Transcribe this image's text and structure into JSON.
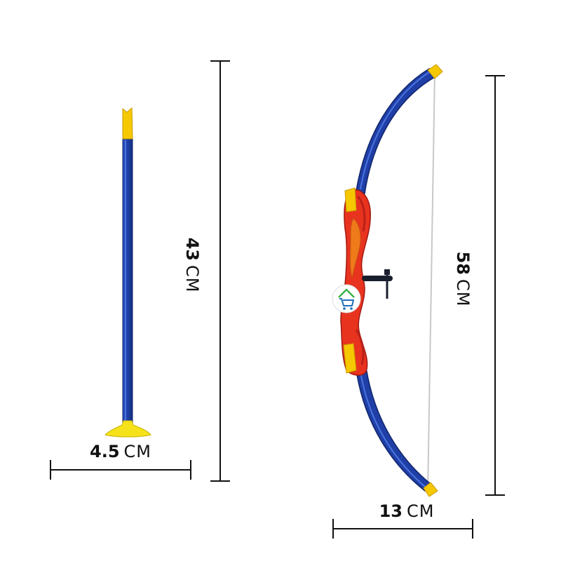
{
  "colors": {
    "shaft_blue": "#1f3fa6",
    "shaft_blue_light": "#3a63d6",
    "fletch_yellow": "#f5c800",
    "riser_red": "#e8331f",
    "riser_dark": "#b8221a",
    "riser_orange": "#ef7a1a",
    "string_gray": "#c8c8c8",
    "dim_line": "#111111",
    "logo_green": "#3ab54a",
    "logo_blue": "#1d6fb8"
  },
  "dimensions": {
    "arrow_width": {
      "value": "4.5",
      "unit": "CM"
    },
    "arrow_length": {
      "value": "43",
      "unit": "CM"
    },
    "bow_height": {
      "value": "58",
      "unit": "CM"
    },
    "bow_depth": {
      "value": "13",
      "unit": "CM"
    }
  },
  "icons": {
    "logo": "cart-house-icon",
    "arrow_rest": "arrow-rest-icon"
  }
}
